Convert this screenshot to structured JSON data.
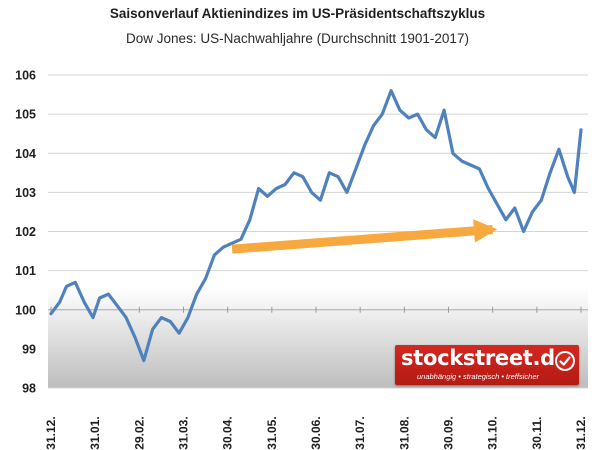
{
  "chart_data": {
    "type": "line",
    "title": "Saisonverlauf Aktienindizes im US-Präsidentschaftszyklus",
    "subtitle": "Dow Jones: US-Nachwahljahre (Durchschnitt 1901-2017)",
    "yticks": [
      "98",
      "99",
      "100",
      "101",
      "102",
      "103",
      "104",
      "105",
      "106"
    ],
    "ylim": [
      98,
      106
    ],
    "xticks": [
      "31.12.",
      "31.01.",
      "29.02.",
      "31.03.",
      "30.04.",
      "31.05.",
      "30.06.",
      "31.07.",
      "31.08.",
      "30.09.",
      "31.10.",
      "30.11.",
      "31.12."
    ],
    "grid": "horizontal",
    "series": [
      {
        "color": "#4f81bd",
        "x": [
          0,
          0.2,
          0.35,
          0.55,
          0.75,
          0.95,
          1.1,
          1.3,
          1.5,
          1.7,
          1.9,
          2.1,
          2.3,
          2.5,
          2.7,
          2.9,
          3.1,
          3.3,
          3.5,
          3.7,
          3.9,
          4.1,
          4.3,
          4.5,
          4.7,
          4.9,
          5.1,
          5.3,
          5.5,
          5.7,
          5.9,
          6.1,
          6.3,
          6.5,
          6.7,
          6.9,
          7.1,
          7.3,
          7.5,
          7.7,
          7.9,
          8.1,
          8.3,
          8.5,
          8.7,
          8.9,
          9.1,
          9.3,
          9.5,
          9.7,
          9.9,
          10.1,
          10.3,
          10.5,
          10.7,
          10.9,
          11.1,
          11.3,
          11.5,
          11.7,
          11.85,
          12
        ],
        "values": [
          99.9,
          100.2,
          100.6,
          100.7,
          100.2,
          99.8,
          100.3,
          100.4,
          100.1,
          99.8,
          99.3,
          98.7,
          99.5,
          99.8,
          99.7,
          99.4,
          99.8,
          100.4,
          100.8,
          101.4,
          101.6,
          101.7,
          101.8,
          102.3,
          103.1,
          102.9,
          103.1,
          103.2,
          103.5,
          103.4,
          103.0,
          102.8,
          103.5,
          103.4,
          103.0,
          103.6,
          104.2,
          104.7,
          105.0,
          105.6,
          105.1,
          104.9,
          105.0,
          104.6,
          104.4,
          105.1,
          104.0,
          103.8,
          103.7,
          103.6,
          103.1,
          102.7,
          102.3,
          102.6,
          102.0,
          102.5,
          102.8,
          103.5,
          104.1,
          103.4,
          103.0,
          104.6
        ]
      }
    ],
    "annotation": {
      "type": "arrow",
      "color": "#f7a940",
      "from": {
        "x": 4.1,
        "y": 101.55
      },
      "to": {
        "x": 10.0,
        "y": 102.05
      }
    }
  },
  "logo": {
    "text": "stockstreet.de",
    "tagline": "unabhängig • strategisch • treffsicher",
    "color": "#c8221a"
  }
}
